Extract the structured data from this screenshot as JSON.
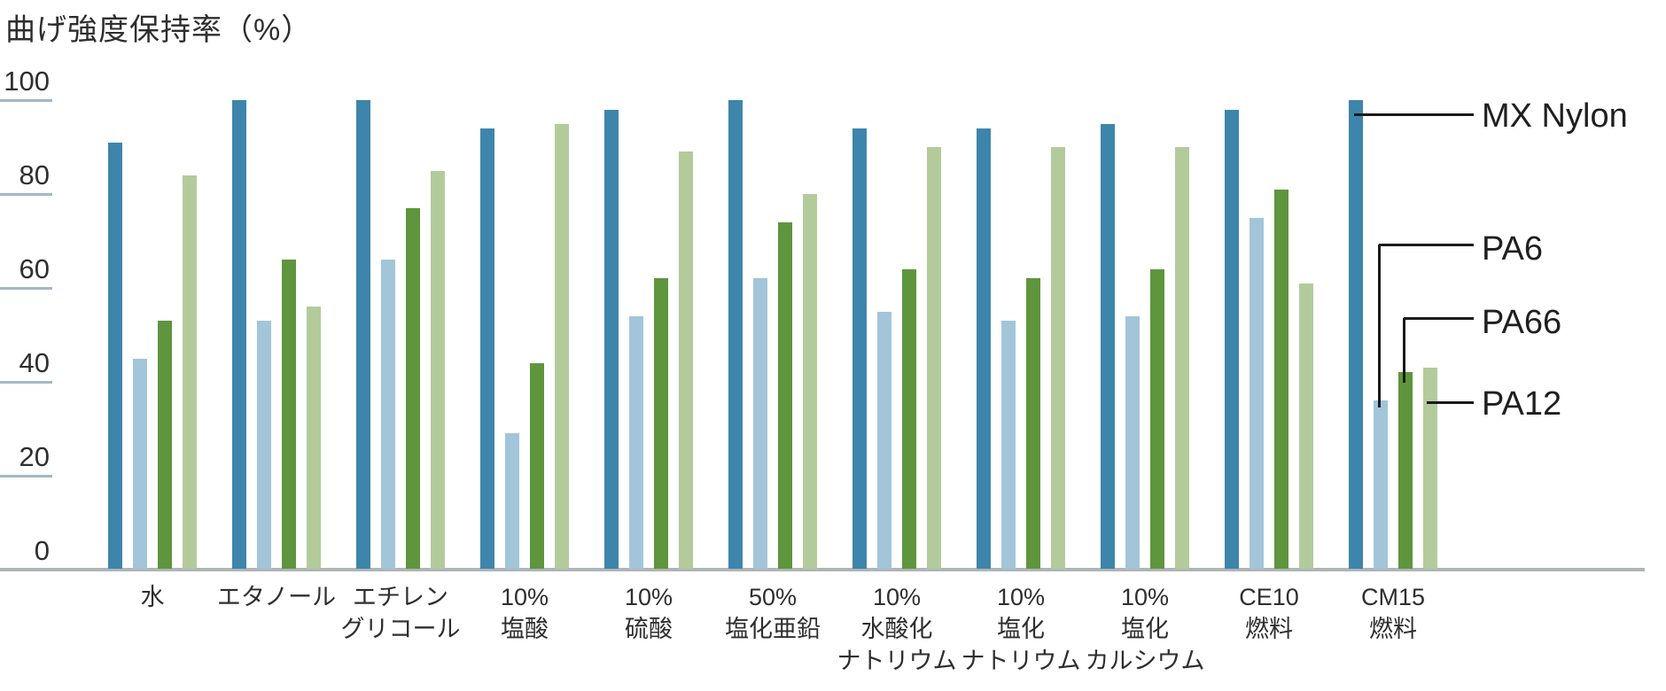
{
  "title": "曲げ強度保持率（%）",
  "colors": {
    "mx_nylon": "#3e85ab",
    "pa6": "#a2c5d9",
    "pa66": "#5e953d",
    "pa12": "#b3cb9b",
    "axis_line": "#b0b4b7",
    "tick_line": "#a3b8c3",
    "text": "#2e2e2e",
    "annotation_line": "#1a1a1a"
  },
  "chart_data": {
    "type": "bar",
    "title": "曲げ強度保持率（%）",
    "ylabel": "曲げ強度保持率（%）",
    "xlabel": "",
    "ylim": [
      0,
      100
    ],
    "grid": "short tick stubs on left axis only, no full gridlines",
    "legend_position": "right side, labels connected to last group bars by black callout lines",
    "yticks": [
      {
        "label": "0",
        "value": 0
      },
      {
        "label": "20",
        "value": 20
      },
      {
        "label": "40",
        "value": 40
      },
      {
        "label": "60",
        "value": 60
      },
      {
        "label": "80",
        "value": 80
      },
      {
        "label": "100",
        "value": 100
      }
    ],
    "categories": [
      [
        "水"
      ],
      [
        "エタノール"
      ],
      [
        "エチレン",
        "グリコール"
      ],
      [
        "10%",
        "塩酸"
      ],
      [
        "10%",
        "硫酸"
      ],
      [
        "50%",
        "塩化亜鉛"
      ],
      [
        "10%",
        "水酸化",
        "ナトリウム"
      ],
      [
        "10%",
        "塩化",
        "ナトリウム"
      ],
      [
        "10%",
        "塩化",
        "カルシウム"
      ],
      [
        "CE10",
        "燃料"
      ],
      [
        "CM15",
        "燃料"
      ]
    ],
    "series": [
      {
        "name": "MX Nylon",
        "color_key": "mx_nylon",
        "values": [
          91,
          100,
          100,
          94,
          98,
          100,
          94,
          94,
          95,
          98,
          100
        ]
      },
      {
        "name": "PA6",
        "color_key": "pa6",
        "values": [
          45,
          53,
          66,
          29,
          54,
          62,
          55,
          53,
          54,
          75,
          36
        ]
      },
      {
        "name": "PA66",
        "color_key": "pa66",
        "values": [
          53,
          66,
          77,
          44,
          62,
          74,
          64,
          62,
          64,
          81,
          42
        ]
      },
      {
        "name": "PA12",
        "color_key": "pa12",
        "values": [
          84,
          56,
          85,
          95,
          89,
          80,
          90,
          90,
          90,
          61,
          43
        ]
      }
    ]
  }
}
